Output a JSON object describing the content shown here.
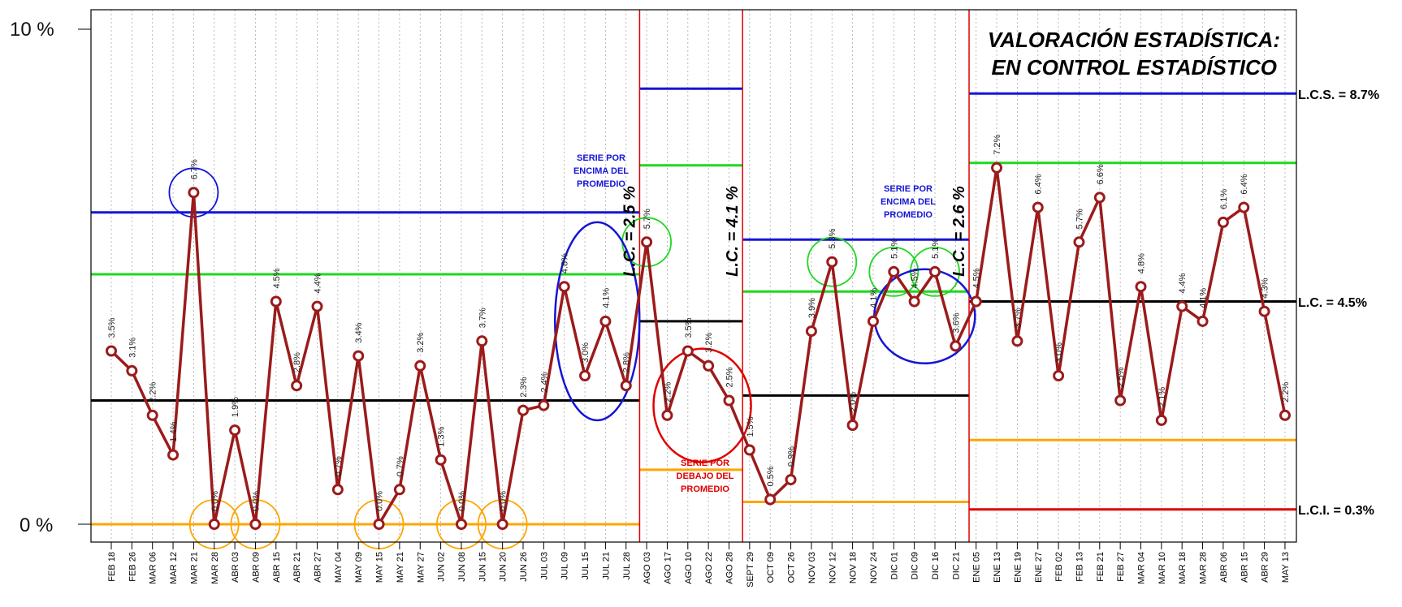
{
  "chart_data": {
    "type": "line",
    "title": [
      "VALORACIÓN ESTADÍSTICA:",
      "EN CONTROL ESTADÍSTICO"
    ],
    "yticks": [
      "10 %",
      "0 %"
    ],
    "ylim": [
      0,
      10
    ],
    "categories": [
      "FEB 18",
      "FEB 26",
      "MAR 06",
      "MAR 12",
      "MAR 21",
      "MAR 28",
      "ABR 03",
      "ABR 09",
      "ABR 15",
      "ABR 21",
      "ABR 27",
      "MAY 04",
      "MAY 09",
      "MAY 15",
      "MAY 21",
      "MAY 27",
      "JUN 02",
      "JUN 08",
      "JUN 15",
      "JUN 20",
      "JUN 26",
      "JUL 03",
      "JUL 09",
      "JUL 15",
      "JUL 21",
      "JUL 28",
      "AGO 03",
      "AGO 17",
      "AGO 10",
      "AGO 22",
      "AGO 28",
      "SEPT 29",
      "OCT 09",
      "OCT 26",
      "NOV 03",
      "NOV 12",
      "NOV 18",
      "NOV 24",
      "DIC 01",
      "DIC 09",
      "DIC 16",
      "DIC 21",
      "ENE 05",
      "ENE 13",
      "ENE 19",
      "ENE 27",
      "FEB 02",
      "FEB 13",
      "FEB 21",
      "FEB 27",
      "MAR 04",
      "MAR 10",
      "MAR 18",
      "MAR 28",
      "ABR 06",
      "ABR 15",
      "ABR 29",
      "MAY 13"
    ],
    "values": [
      3.5,
      3.1,
      2.2,
      1.4,
      6.7,
      0.0,
      1.9,
      0.0,
      4.5,
      2.8,
      4.4,
      0.7,
      3.4,
      0.0,
      0.7,
      3.2,
      1.3,
      0.0,
      3.7,
      0.0,
      2.3,
      2.4,
      4.8,
      3.0,
      4.1,
      2.8,
      5.7,
      2.2,
      3.5,
      3.2,
      2.5,
      1.5,
      0.5,
      0.9,
      3.9,
      5.3,
      2.0,
      4.1,
      5.1,
      4.5,
      5.1,
      3.6,
      4.5,
      7.2,
      3.7,
      6.4,
      3.0,
      5.7,
      6.6,
      2.5,
      4.8,
      2.1,
      4.4,
      4.1,
      6.1,
      6.4,
      4.3,
      2.2
    ],
    "data_labels": [
      "3.5%",
      "3.1%",
      "2.2%",
      "1.4%",
      "6.7%",
      "0.0%",
      "1.9%",
      "0.0%",
      "4.5%",
      "2.8%",
      "4.4%",
      "0.7%",
      "3.4%",
      "0.0%",
      "0.7%",
      "3.2%",
      "1.3%",
      "0.0%",
      "3.7%",
      "0.0%",
      "2.3%",
      "2.4%",
      "4.8%",
      "3.0%",
      "4.1%",
      "2.8%",
      "5.7%",
      "2.2%",
      "3.5%",
      "3.2%",
      "2.5%",
      "1.5%",
      "0.5%",
      "0.9%",
      "3.9%",
      "5.3%",
      "2.0%",
      "4.1%",
      "5.1%",
      "4.5%",
      "5.1%",
      "3.6%",
      "4.5%",
      "7.2%",
      "3.7%",
      "6.4%",
      "3.0%",
      "5.7%",
      "6.6%",
      "2.5%",
      "4.8%",
      "2.1%",
      "4.4%",
      "4.1%",
      "6.1%",
      "6.4%",
      "4.3%",
      "2.2%"
    ],
    "segments": [
      {
        "from": 0,
        "to": 25,
        "lc": 2.5,
        "ucl": 6.3,
        "lcl": 0.0,
        "mid_hi": 5.05,
        "label": ""
      },
      {
        "from": 26,
        "to": 30,
        "lc": 4.1,
        "ucl": 8.8,
        "lcl": 1.1,
        "mid_hi": 7.25,
        "label": "L.C. = 2.5 %"
      },
      {
        "from": 31,
        "to": 41,
        "lc": 2.6,
        "ucl": 5.75,
        "lcl": 0.45,
        "mid_hi": 4.7,
        "label": "L.C. = 4.1 %"
      },
      {
        "from": 42,
        "to": 57,
        "lc": 4.5,
        "ucl": 8.7,
        "lcl": 0.3,
        "mid_hi": 7.3,
        "mid_lo": 1.7,
        "label": "L.C. = 2.6 %"
      }
    ],
    "limit_labels": [
      "L.C.S. =  8.7%",
      "L.C. =  4.5%",
      "L.C.I. =  0.3%"
    ],
    "annotations": {
      "above_1": [
        "SERIE POR",
        "ENCIMA DEL",
        "PROMEDIO"
      ],
      "below": [
        "SERIE POR",
        "DEBAJO DEL",
        "PROMEDIO"
      ],
      "above_2": [
        "SERIE POR",
        "ENCIMA DEL",
        "PROMEDIO"
      ]
    },
    "colors": {
      "series": "#9b1b1b",
      "ucl": "#1515d6",
      "center": "#000000",
      "sigma": "#1fd81f",
      "lcl_orange": "#ffa500",
      "lcl_red": "#e00000",
      "circle_blue": "#1515d6",
      "circle_green": "#1fd81f",
      "circle_orange": "#ffa500",
      "circle_red": "#e00000"
    }
  }
}
